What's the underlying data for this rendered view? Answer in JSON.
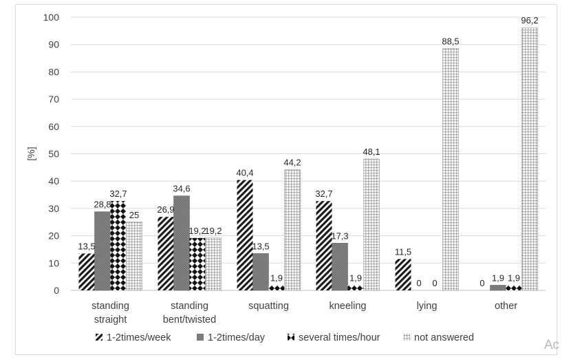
{
  "chart_data": {
    "type": "bar",
    "ylabel": "[%]",
    "ylim": [
      0,
      100
    ],
    "y_ticks": [
      "0",
      "10",
      "20",
      "30",
      "40",
      "50",
      "60",
      "70",
      "80",
      "90",
      "100"
    ],
    "grid": true,
    "legend_position": "bottom",
    "categories": [
      [
        "standing",
        "straight"
      ],
      [
        "standing",
        "bent/twisted"
      ],
      [
        "squatting"
      ],
      [
        "kneeling"
      ],
      [
        "lying"
      ],
      [
        "other"
      ]
    ],
    "series": [
      {
        "name": "1-2times/week",
        "values": [
          13.5,
          26.9,
          40.4,
          32.7,
          11.5,
          0
        ],
        "labels": [
          "13,5",
          "26,9",
          "40,4",
          "32,7",
          "11,5",
          "0"
        ],
        "pattern": "diagonal"
      },
      {
        "name": "1-2times/day",
        "values": [
          28.8,
          34.6,
          13.5,
          17.3,
          0,
          1.9
        ],
        "labels": [
          "28,8",
          "34,6",
          "13,5",
          "17,3",
          "0",
          "1,9"
        ],
        "pattern": "grey"
      },
      {
        "name": "several times/hour",
        "values": [
          32.7,
          19.2,
          1.9,
          1.9,
          0,
          1.9
        ],
        "labels": [
          "32,7",
          "19,2",
          "1,9",
          "1,9",
          "0",
          "1,9"
        ],
        "pattern": "diamond"
      },
      {
        "name": "not answered",
        "values": [
          25,
          19.2,
          44.2,
          48.1,
          88.5,
          96.2
        ],
        "labels": [
          "25",
          "19,2",
          "44,2",
          "48,1",
          "88,5",
          "96,2"
        ],
        "pattern": "grid"
      }
    ],
    "colors": {
      "grid": "#d9d9d9",
      "text": "#404040",
      "bar_dark": "#1a1a1a",
      "bar_grey": "#7f7f7f"
    }
  },
  "corner_text": "Ac"
}
